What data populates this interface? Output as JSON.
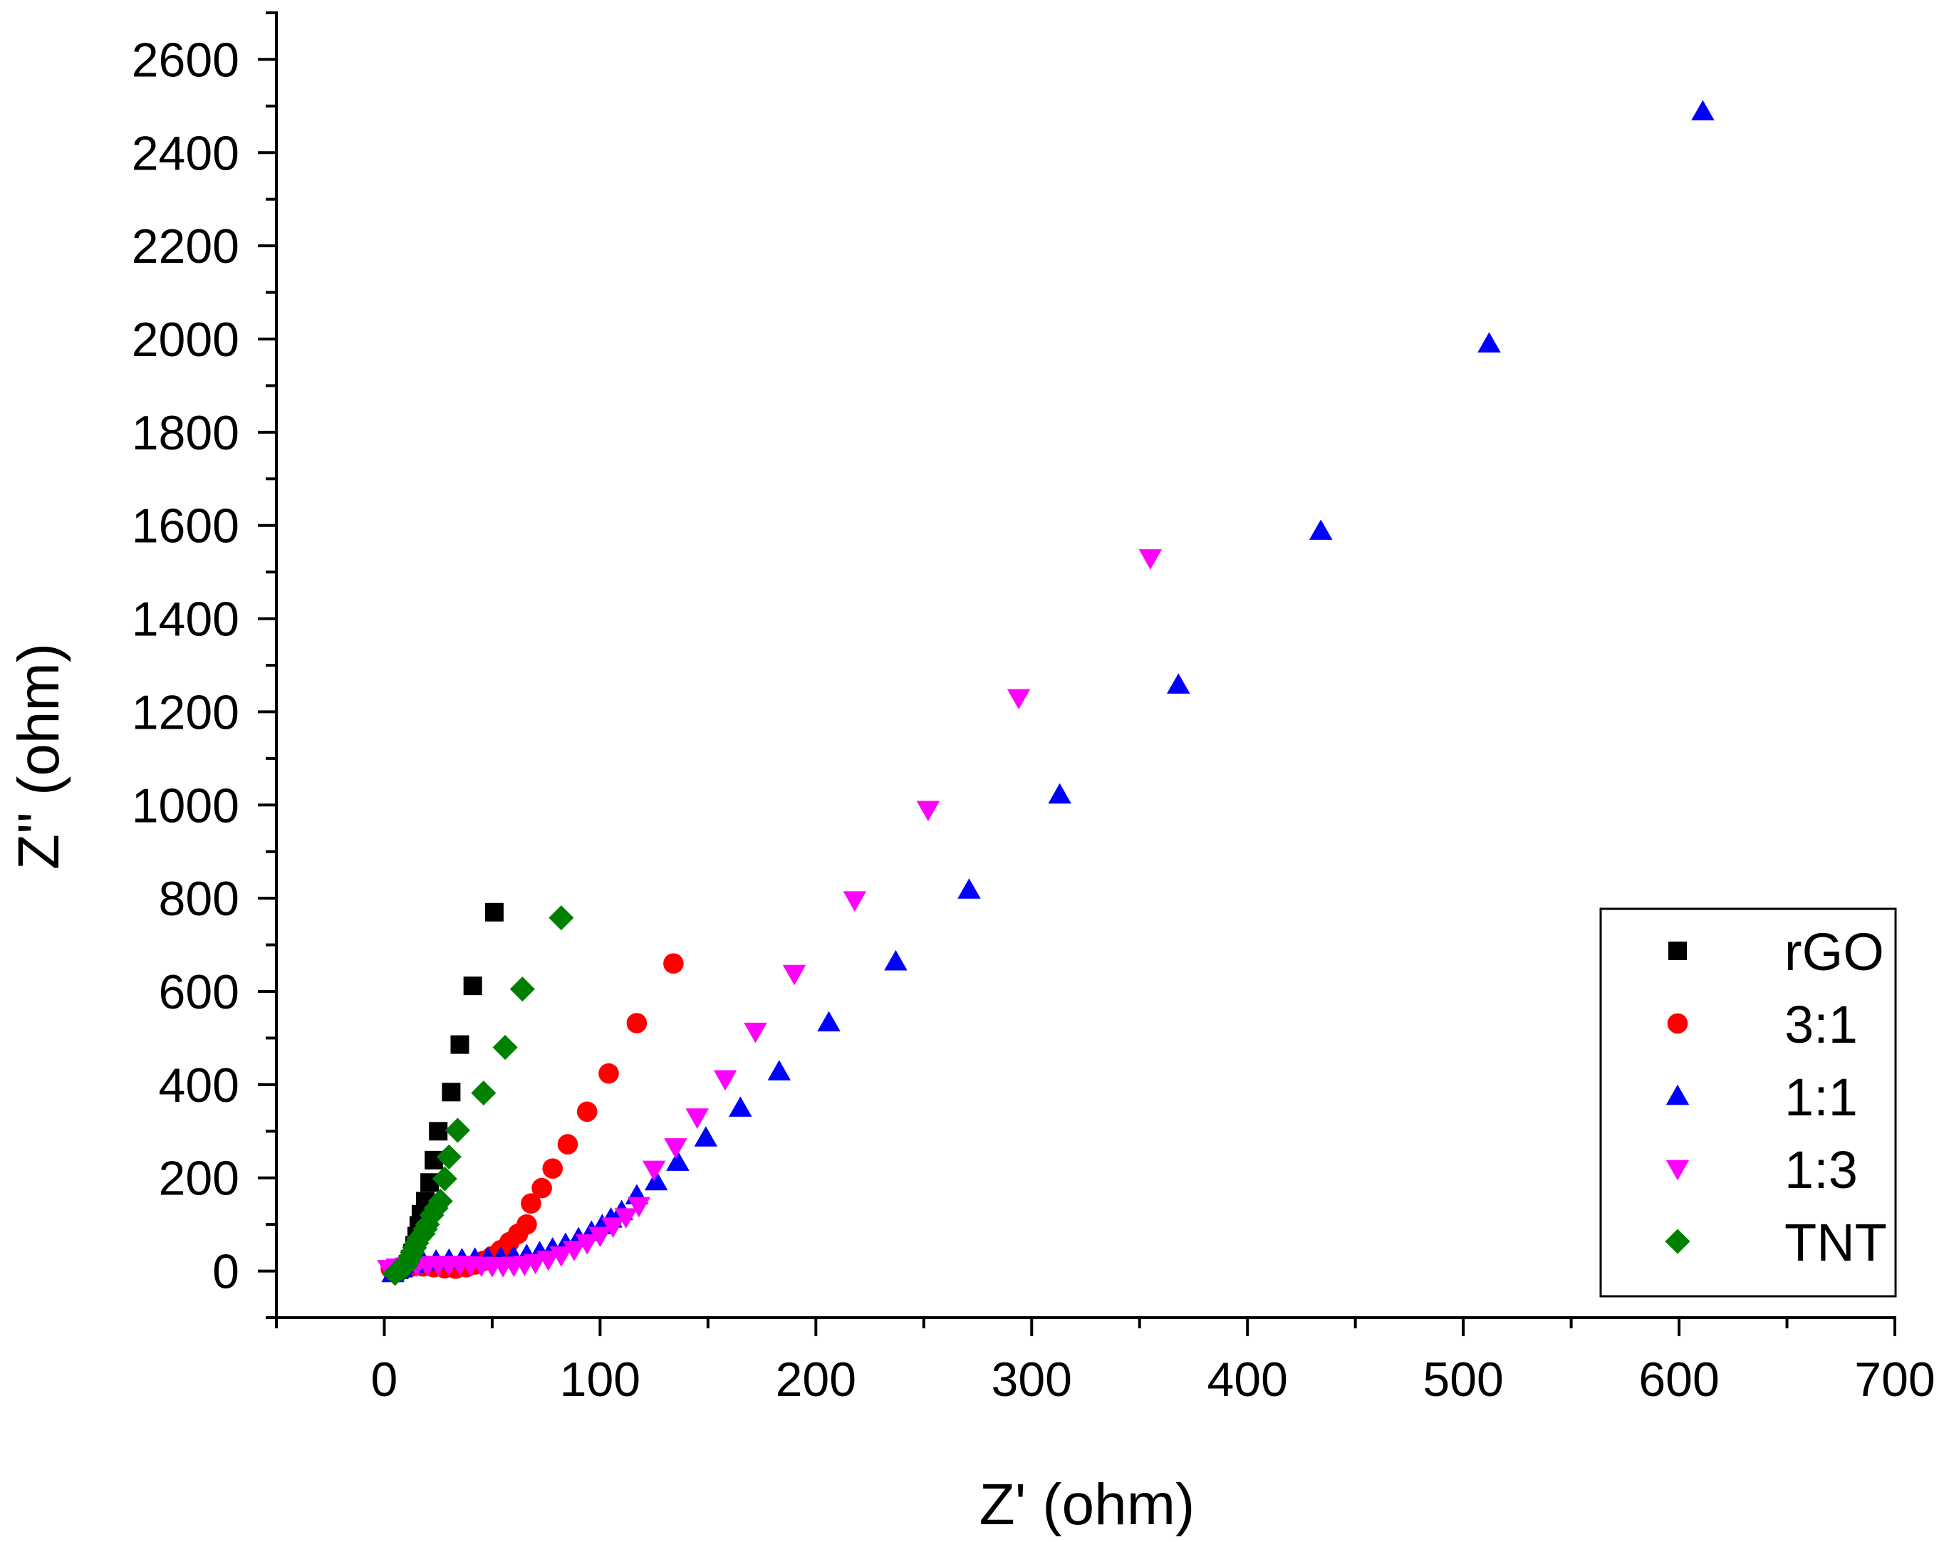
{
  "chart_data": {
    "type": "scatter",
    "title": "",
    "xlabel": "Z' (ohm)",
    "ylabel": "Z'' (ohm)",
    "xlim": [
      -50,
      700
    ],
    "ylim": [
      -100,
      2700
    ],
    "x_ticks": [
      0,
      100,
      200,
      300,
      400,
      500,
      600,
      700
    ],
    "x_tick_labels": [
      "0",
      "100",
      "200",
      "300",
      "400",
      "500",
      "600",
      "700"
    ],
    "y_ticks": [
      0,
      200,
      400,
      600,
      800,
      1000,
      1200,
      1400,
      1600,
      1800,
      2000,
      2200,
      2400,
      2600
    ],
    "y_tick_labels": [
      "0",
      "200",
      "400",
      "600",
      "800",
      "1000",
      "1200",
      "1400",
      "1600",
      "1800",
      "2000",
      "2200",
      "2400",
      "2600"
    ],
    "grid": false,
    "legend_position": "bottom-right",
    "series": [
      {
        "name": "rGO",
        "marker": "square",
        "color": "#000000",
        "points": [
          [
            5,
            0
          ],
          [
            7,
            3
          ],
          [
            9,
            8
          ],
          [
            11,
            15
          ],
          [
            12,
            25
          ],
          [
            13,
            38
          ],
          [
            14,
            55
          ],
          [
            15,
            75
          ],
          [
            16,
            98
          ],
          [
            17,
            122
          ],
          [
            19,
            150
          ],
          [
            21,
            190
          ],
          [
            23,
            238
          ],
          [
            25,
            300
          ],
          [
            31,
            384
          ],
          [
            35,
            486
          ],
          [
            41,
            612
          ],
          [
            51,
            770
          ]
        ]
      },
      {
        "name": "3:1",
        "marker": "circle",
        "color": "#ff0000",
        "points": [
          [
            3,
            5
          ],
          [
            8,
            8
          ],
          [
            13,
            10
          ],
          [
            18,
            10
          ],
          [
            23,
            8
          ],
          [
            28,
            6
          ],
          [
            33,
            5
          ],
          [
            38,
            8
          ],
          [
            42,
            14
          ],
          [
            46,
            22
          ],
          [
            50,
            32
          ],
          [
            54,
            45
          ],
          [
            58,
            62
          ],
          [
            62,
            80
          ],
          [
            66,
            100
          ],
          [
            68,
            145
          ],
          [
            73,
            178
          ],
          [
            78,
            220
          ],
          [
            85,
            272
          ],
          [
            94,
            342
          ],
          [
            104,
            424
          ],
          [
            117,
            532
          ],
          [
            134,
            660
          ]
        ]
      },
      {
        "name": "1:1",
        "marker": "triangle-up",
        "color": "#0000ff",
        "points": [
          [
            4,
            -5
          ],
          [
            8,
            5
          ],
          [
            13,
            15
          ],
          [
            18,
            20
          ],
          [
            24,
            22
          ],
          [
            30,
            24
          ],
          [
            36,
            25
          ],
          [
            42,
            26
          ],
          [
            48,
            27
          ],
          [
            54,
            28
          ],
          [
            60,
            30
          ],
          [
            66,
            34
          ],
          [
            72,
            40
          ],
          [
            78,
            48
          ],
          [
            84,
            58
          ],
          [
            90,
            70
          ],
          [
            96,
            84
          ],
          [
            101,
            98
          ],
          [
            105,
            112
          ],
          [
            110,
            128
          ],
          [
            117,
            162
          ],
          [
            126,
            192
          ],
          [
            136,
            234
          ],
          [
            149,
            286
          ],
          [
            165,
            350
          ],
          [
            183,
            428
          ],
          [
            206,
            533
          ],
          [
            237,
            664
          ],
          [
            271,
            818
          ],
          [
            313,
            1022
          ],
          [
            368,
            1258
          ],
          [
            434,
            1588
          ],
          [
            512,
            1990
          ],
          [
            611,
            2488
          ]
        ]
      },
      {
        "name": "1:3",
        "marker": "triangle-down",
        "color": "#ff00ff",
        "points": [
          [
            2,
            5
          ],
          [
            6,
            8
          ],
          [
            10,
            10
          ],
          [
            15,
            12
          ],
          [
            20,
            13
          ],
          [
            25,
            14
          ],
          [
            30,
            14
          ],
          [
            35,
            14
          ],
          [
            40,
            13
          ],
          [
            45,
            12
          ],
          [
            50,
            11
          ],
          [
            55,
            11
          ],
          [
            60,
            12
          ],
          [
            65,
            14
          ],
          [
            70,
            18
          ],
          [
            76,
            25
          ],
          [
            82,
            34
          ],
          [
            88,
            46
          ],
          [
            94,
            60
          ],
          [
            100,
            76
          ],
          [
            106,
            96
          ],
          [
            112,
            116
          ],
          [
            118,
            140
          ],
          [
            125,
            218
          ],
          [
            135,
            266
          ],
          [
            145,
            330
          ],
          [
            158,
            412
          ],
          [
            172,
            514
          ],
          [
            190,
            638
          ],
          [
            218,
            796
          ],
          [
            252,
            990
          ],
          [
            294,
            1230
          ],
          [
            355,
            1530
          ]
        ]
      },
      {
        "name": "TNT",
        "marker": "diamond",
        "color": "#008000",
        "points": [
          [
            5,
            -5
          ],
          [
            6,
            0
          ],
          [
            8,
            5
          ],
          [
            10,
            12
          ],
          [
            11,
            20
          ],
          [
            12,
            30
          ],
          [
            13,
            40
          ],
          [
            14,
            50
          ],
          [
            15,
            60
          ],
          [
            16,
            70
          ],
          [
            18,
            80
          ],
          [
            19,
            90
          ],
          [
            20,
            100
          ],
          [
            22,
            120
          ],
          [
            24,
            135
          ],
          [
            26,
            150
          ],
          [
            28,
            198
          ],
          [
            30,
            245
          ],
          [
            34,
            302
          ],
          [
            46,
            382
          ],
          [
            56,
            480
          ],
          [
            64,
            605
          ],
          [
            82,
            758
          ]
        ]
      }
    ]
  }
}
